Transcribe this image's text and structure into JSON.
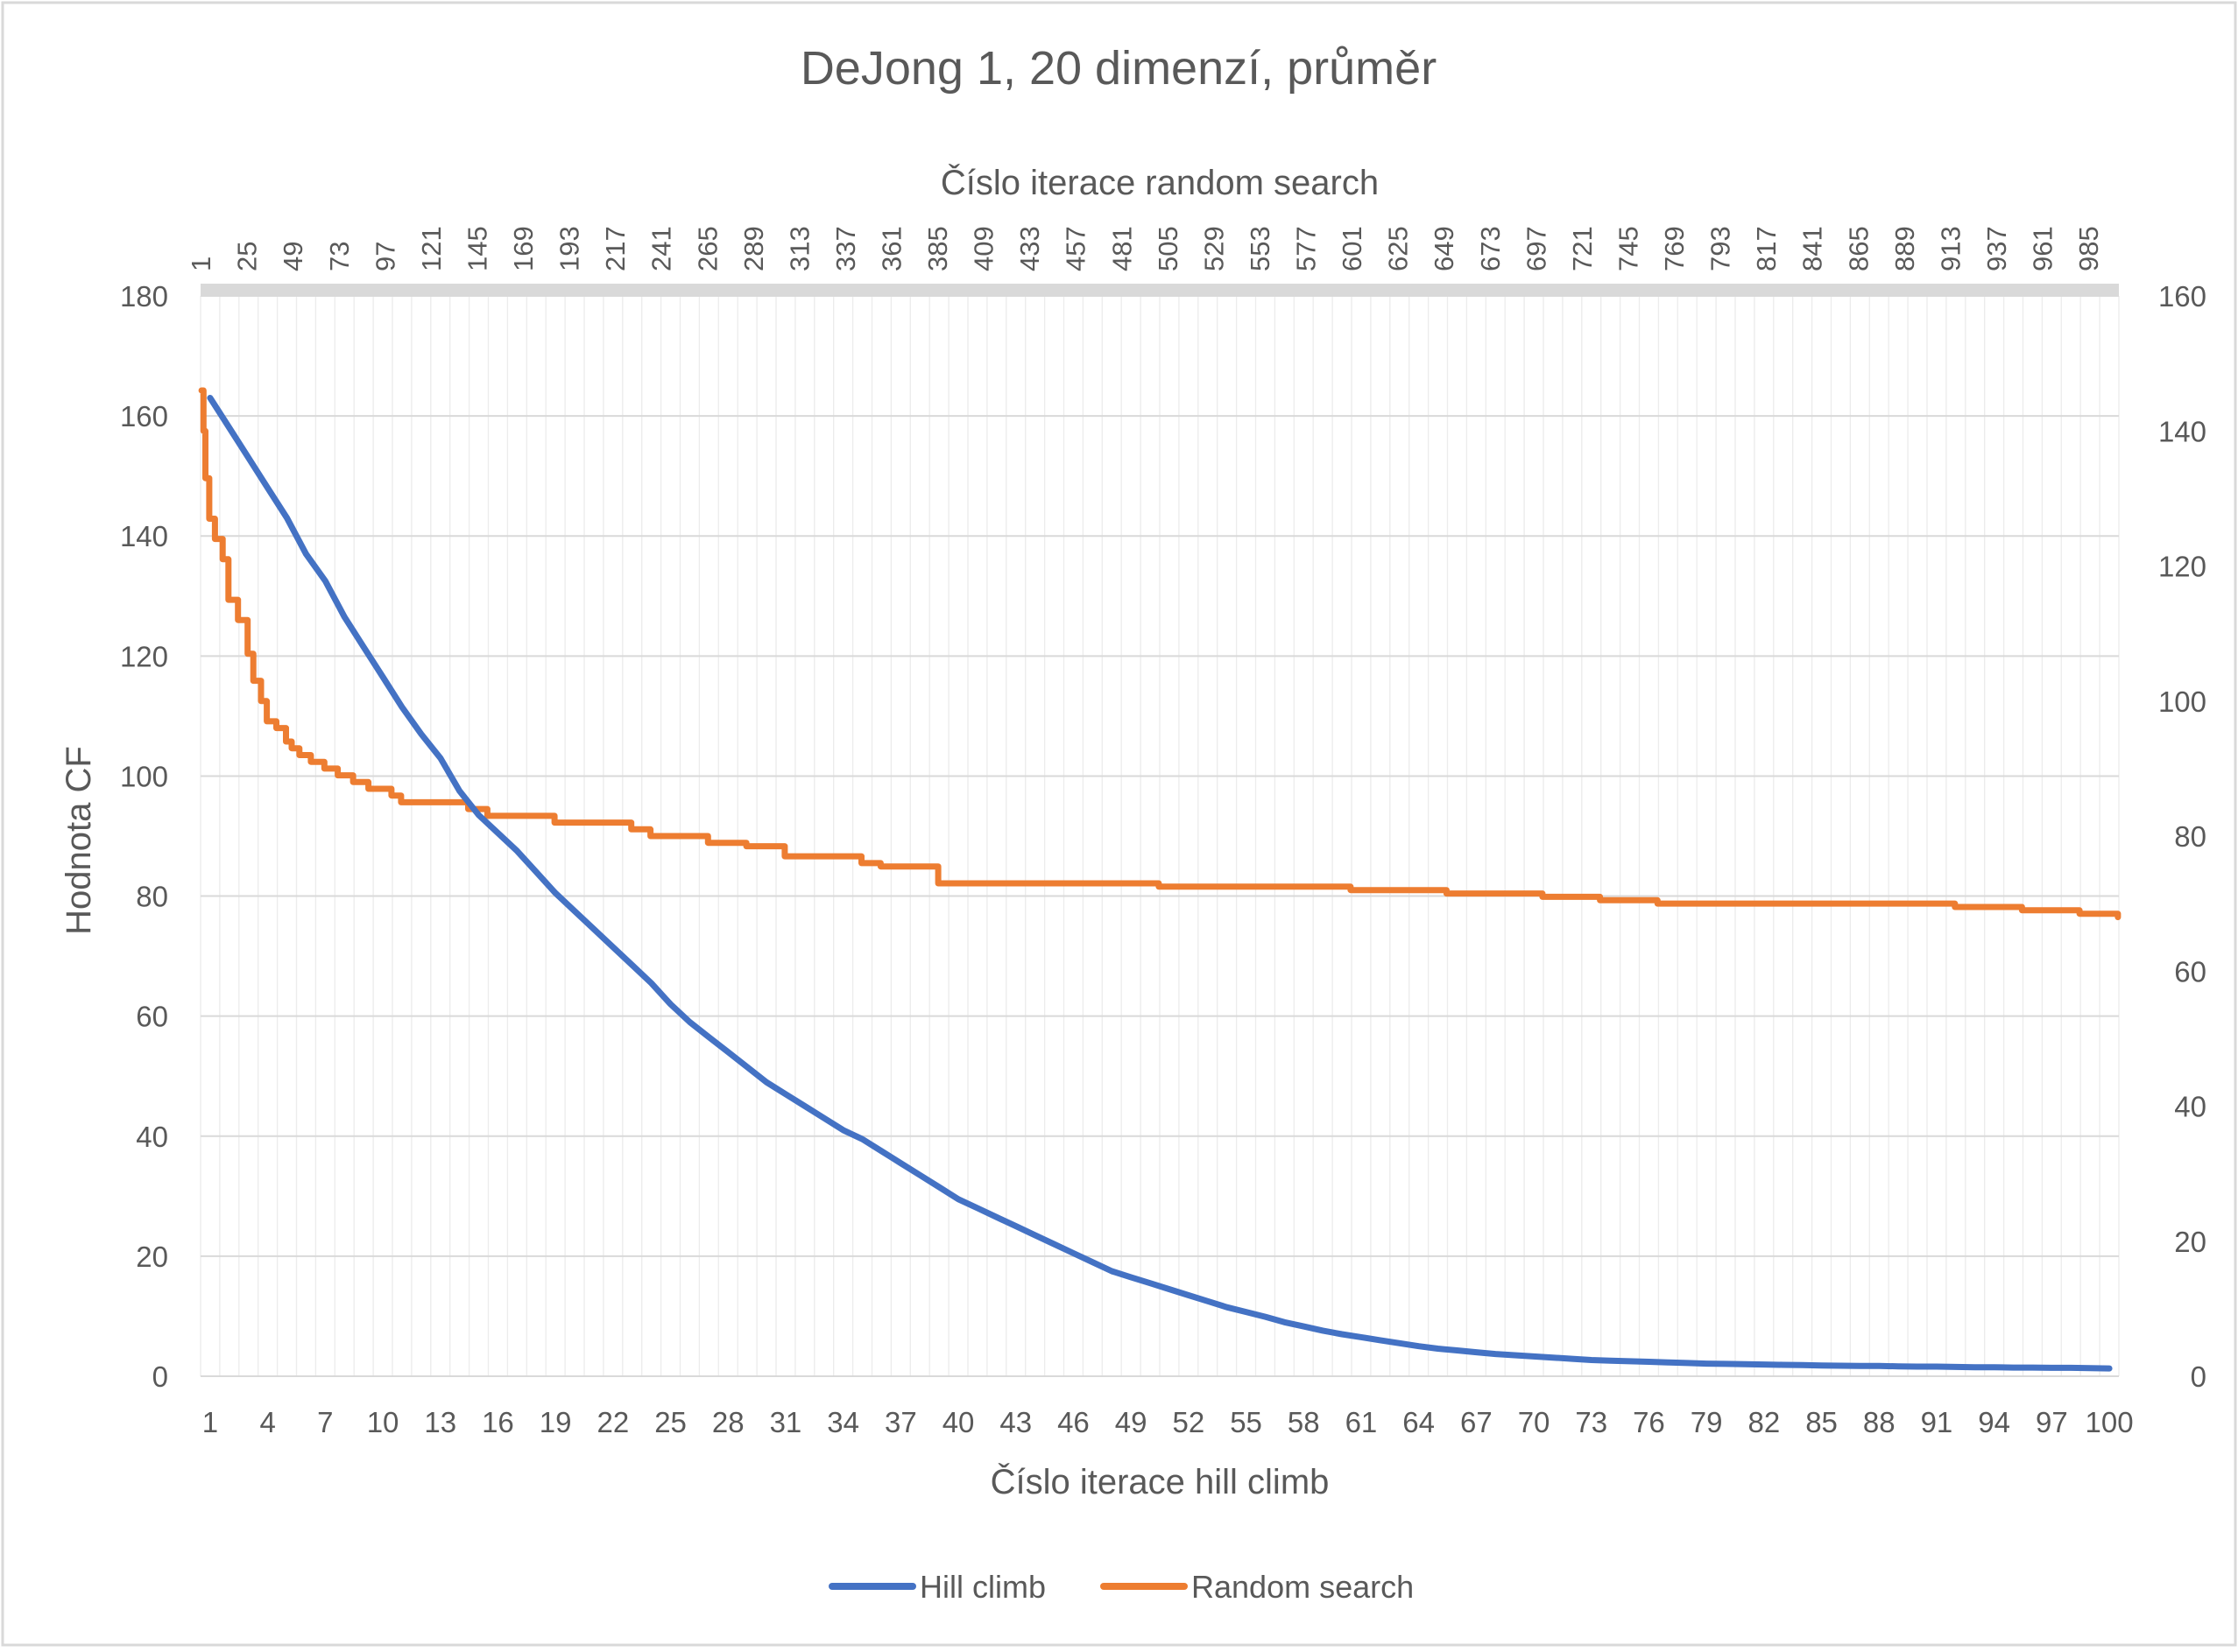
{
  "chart_data": {
    "type": "line",
    "title": "DeJong 1, 20 dimenzí, průměr",
    "xlabel": "Číslo iterace hill climb",
    "ylabel": "Hodnota CF",
    "x2label": "Číslo iterace random search",
    "ylim": [
      0,
      180
    ],
    "y2lim": [
      0,
      160
    ],
    "yticks": [
      "0",
      "20",
      "40",
      "60",
      "80",
      "100",
      "120",
      "140",
      "160",
      "180"
    ],
    "y2ticks": [
      "0",
      "20",
      "40",
      "60",
      "80",
      "100",
      "120",
      "140",
      "160"
    ],
    "xticks": [
      "1",
      "4",
      "7",
      "10",
      "13",
      "16",
      "19",
      "22",
      "25",
      "28",
      "31",
      "34",
      "37",
      "40",
      "43",
      "46",
      "49",
      "52",
      "55",
      "58",
      "61",
      "64",
      "67",
      "70",
      "73",
      "76",
      "79",
      "82",
      "85",
      "88",
      "91",
      "94",
      "97",
      "100"
    ],
    "x2ticks": [
      "1",
      "25",
      "49",
      "73",
      "97",
      "121",
      "145",
      "169",
      "193",
      "217",
      "241",
      "265",
      "289",
      "313",
      "337",
      "361",
      "385",
      "409",
      "433",
      "457",
      "481",
      "505",
      "529",
      "553",
      "577",
      "601",
      "625",
      "649",
      "673",
      "697",
      "721",
      "745",
      "769",
      "793",
      "817",
      "841",
      "865",
      "889",
      "913",
      "937",
      "961",
      "985"
    ],
    "grid": true,
    "legend_position": "bottom",
    "series": [
      {
        "name": "Hill climb",
        "color": "#4472c4",
        "axis": "primary",
        "x": [
          1,
          2,
          3,
          4,
          5,
          6,
          7,
          8,
          9,
          10,
          11,
          12,
          13,
          14,
          15,
          16,
          17,
          18,
          19,
          20,
          21,
          22,
          23,
          24,
          25,
          26,
          27,
          28,
          29,
          30,
          31,
          32,
          33,
          34,
          35,
          36,
          37,
          38,
          39,
          40,
          41,
          42,
          43,
          44,
          45,
          46,
          47,
          48,
          49,
          50,
          51,
          52,
          53,
          54,
          55,
          56,
          57,
          58,
          59,
          60,
          61,
          62,
          63,
          64,
          65,
          66,
          67,
          68,
          69,
          70,
          71,
          72,
          73,
          74,
          75,
          76,
          77,
          78,
          79,
          80,
          81,
          82,
          83,
          84,
          85,
          86,
          87,
          88,
          89,
          90,
          91,
          92,
          93,
          94,
          95,
          96,
          97,
          98,
          99,
          100
        ],
        "values": [
          163,
          158,
          153,
          148,
          143,
          137,
          132.5,
          126.5,
          121.5,
          116.5,
          111.5,
          107,
          103,
          97.5,
          93.5,
          90.5,
          87.5,
          84,
          80.5,
          77.5,
          74.5,
          71.5,
          68.5,
          65.5,
          62,
          59,
          56.5,
          54,
          51.5,
          49,
          47,
          45,
          43,
          41,
          39.5,
          37.5,
          35.5,
          33.5,
          31.5,
          29.5,
          28,
          26.5,
          25,
          23.5,
          22,
          20.5,
          19,
          17.5,
          16.5,
          15.5,
          14.5,
          13.5,
          12.5,
          11.5,
          10.7,
          9.9,
          9,
          8.3,
          7.6,
          7,
          6.5,
          6,
          5.5,
          5,
          4.6,
          4.3,
          4,
          3.7,
          3.5,
          3.3,
          3.1,
          2.9,
          2.7,
          2.6,
          2.5,
          2.4,
          2.3,
          2.2,
          2.1,
          2.05,
          2,
          1.95,
          1.9,
          1.85,
          1.8,
          1.75,
          1.7,
          1.7,
          1.65,
          1.6,
          1.6,
          1.55,
          1.5,
          1.5,
          1.45,
          1.45,
          1.4,
          1.4,
          1.35,
          1.3
        ]
      },
      {
        "name": "Random search",
        "color": "#ed7d31",
        "axis": "secondary",
        "x": [
          1,
          2,
          3,
          5,
          8,
          12,
          15,
          20,
          25,
          28,
          32,
          35,
          40,
          45,
          48,
          52,
          58,
          65,
          72,
          80,
          88,
          95,
          100,
          105,
          115,
          125,
          140,
          150,
          160,
          170,
          185,
          200,
          215,
          225,
          235,
          250,
          265,
          285,
          305,
          325,
          345,
          355,
          385,
          420,
          450,
          460,
          500,
          550,
          600,
          610,
          650,
          700,
          720,
          730,
          760,
          800,
          820,
          900,
          915,
          950,
          980,
          1000
        ],
        "values": [
          146,
          140,
          133,
          127,
          124,
          121,
          115,
          112,
          107,
          103,
          100,
          97,
          96,
          94,
          93,
          92,
          91,
          90,
          89,
          88,
          87,
          87,
          86,
          85,
          85,
          85,
          84,
          83,
          83,
          83,
          82,
          82,
          82,
          81,
          80,
          80,
          79,
          78.5,
          77,
          77,
          76,
          75.5,
          73,
          73,
          73,
          73,
          72.5,
          72.5,
          72,
          72,
          71.5,
          71,
          71,
          70.5,
          70,
          70,
          70,
          70,
          69.5,
          69,
          68.5,
          68
        ]
      }
    ]
  }
}
